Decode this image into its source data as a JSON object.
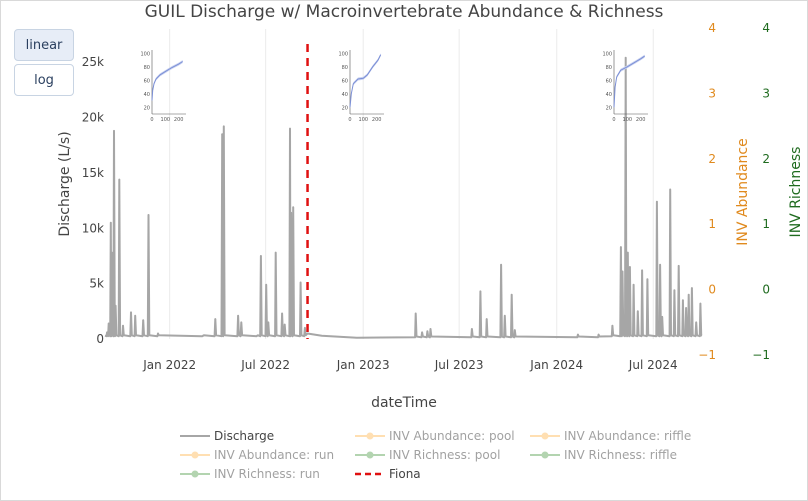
{
  "buttons": {
    "linear": "linear",
    "log": "log"
  },
  "chart_data": {
    "type": "line",
    "title": "GUIL Discharge w/ Macroinvertebrate Abundance & Richness",
    "xlabel": "dateTime",
    "ylabel": "Discharge (L/s)",
    "y2label": "INV Abundance",
    "y3label": "INV Richness",
    "x_range": [
      "2021-09-01",
      "2024-10-01"
    ],
    "ylim": [
      0,
      28000
    ],
    "y2lim": [
      -1,
      4
    ],
    "y3lim": [
      -1,
      4
    ],
    "x_ticks": [
      {
        "date": "2022-01-01",
        "label": "Jan 2022"
      },
      {
        "date": "2022-07-01",
        "label": "Jul 2022"
      },
      {
        "date": "2023-01-01",
        "label": "Jan 2023"
      },
      {
        "date": "2023-07-01",
        "label": "Jul 2023"
      },
      {
        "date": "2024-01-01",
        "label": "Jan 2024"
      },
      {
        "date": "2024-07-01",
        "label": "Jul 2024"
      }
    ],
    "y_ticks": [
      {
        "value": 0,
        "label": "0"
      },
      {
        "value": 5000,
        "label": "5k"
      },
      {
        "value": 10000,
        "label": "10k"
      },
      {
        "value": 15000,
        "label": "15k"
      },
      {
        "value": 20000,
        "label": "20k"
      },
      {
        "value": 25000,
        "label": "25k"
      }
    ],
    "y2_ticks": [
      "−1",
      "0",
      "1",
      "2",
      "3",
      "4"
    ],
    "y3_ticks": [
      "−1",
      "0",
      "1",
      "2",
      "3",
      "4"
    ],
    "colors": {
      "discharge": "#a6a6a6",
      "abundance": "#ffc067",
      "richness": "#6aaa64",
      "fiona": "#e01010",
      "y2_axis": "#e08a1e",
      "y3_axis": "#1f6b1f",
      "inset_line": "#7b8fd6"
    },
    "fiona_date": "2022-09-18",
    "discharge_baseline_note": "approx. 100-400 L/s between peaks",
    "discharge_peaks": [
      {
        "date": "2021-09-05",
        "value": 600
      },
      {
        "date": "2021-09-08",
        "value": 1400
      },
      {
        "date": "2021-09-12",
        "value": 10500
      },
      {
        "date": "2021-09-14",
        "value": 7800
      },
      {
        "date": "2021-09-18",
        "value": 18800
      },
      {
        "date": "2021-09-21",
        "value": 3000
      },
      {
        "date": "2021-09-28",
        "value": 14400
      },
      {
        "date": "2021-10-05",
        "value": 1200
      },
      {
        "date": "2021-10-20",
        "value": 2400
      },
      {
        "date": "2021-10-28",
        "value": 2100
      },
      {
        "date": "2021-11-12",
        "value": 1700
      },
      {
        "date": "2021-11-22",
        "value": 11200
      },
      {
        "date": "2021-12-10",
        "value": 500
      },
      {
        "date": "2022-03-05",
        "value": 300
      },
      {
        "date": "2022-03-28",
        "value": 1800
      },
      {
        "date": "2022-04-10",
        "value": 18500
      },
      {
        "date": "2022-04-13",
        "value": 19200
      },
      {
        "date": "2022-05-10",
        "value": 2100
      },
      {
        "date": "2022-05-16",
        "value": 1500
      },
      {
        "date": "2022-06-15",
        "value": 300
      },
      {
        "date": "2022-06-22",
        "value": 7500
      },
      {
        "date": "2022-07-02",
        "value": 4900
      },
      {
        "date": "2022-07-06",
        "value": 1500
      },
      {
        "date": "2022-07-20",
        "value": 7800
      },
      {
        "date": "2022-08-01",
        "value": 2300
      },
      {
        "date": "2022-08-06",
        "value": 1300
      },
      {
        "date": "2022-08-16",
        "value": 19000
      },
      {
        "date": "2022-08-18",
        "value": 11400
      },
      {
        "date": "2022-08-22",
        "value": 11900
      },
      {
        "date": "2022-09-05",
        "value": 5100
      },
      {
        "date": "2022-09-13",
        "value": 1000
      },
      {
        "date": "2023-04-10",
        "value": 2300
      },
      {
        "date": "2023-04-22",
        "value": 600
      },
      {
        "date": "2023-05-02",
        "value": 700
      },
      {
        "date": "2023-05-08",
        "value": 900
      },
      {
        "date": "2023-07-25",
        "value": 900
      },
      {
        "date": "2023-08-10",
        "value": 4300
      },
      {
        "date": "2023-08-22",
        "value": 1800
      },
      {
        "date": "2023-09-18",
        "value": 6700
      },
      {
        "date": "2023-09-25",
        "value": 2100
      },
      {
        "date": "2023-10-08",
        "value": 4000
      },
      {
        "date": "2023-10-14",
        "value": 800
      },
      {
        "date": "2024-02-10",
        "value": 400
      },
      {
        "date": "2024-03-20",
        "value": 400
      },
      {
        "date": "2024-04-15",
        "value": 1200
      },
      {
        "date": "2024-05-01",
        "value": 8300
      },
      {
        "date": "2024-05-04",
        "value": 6100
      },
      {
        "date": "2024-05-10",
        "value": 25400
      },
      {
        "date": "2024-05-14",
        "value": 7800
      },
      {
        "date": "2024-05-18",
        "value": 6500
      },
      {
        "date": "2024-05-25",
        "value": 4900
      },
      {
        "date": "2024-06-02",
        "value": 2500
      },
      {
        "date": "2024-06-10",
        "value": 6200
      },
      {
        "date": "2024-06-20",
        "value": 5400
      },
      {
        "date": "2024-07-08",
        "value": 12400
      },
      {
        "date": "2024-07-14",
        "value": 6700
      },
      {
        "date": "2024-07-18",
        "value": 2000
      },
      {
        "date": "2024-08-02",
        "value": 13500
      },
      {
        "date": "2024-08-10",
        "value": 4400
      },
      {
        "date": "2024-08-18",
        "value": 6600
      },
      {
        "date": "2024-08-26",
        "value": 3500
      },
      {
        "date": "2024-09-01",
        "value": 2800
      },
      {
        "date": "2024-09-06",
        "value": 4000
      },
      {
        "date": "2024-09-12",
        "value": 4600
      },
      {
        "date": "2024-09-20",
        "value": 1500
      },
      {
        "date": "2024-09-28",
        "value": 3200
      }
    ],
    "insets": [
      {
        "x_tick_labels": [
          "0",
          "100",
          "200"
        ],
        "y_tick_labels": [
          "20",
          "40",
          "60",
          "80",
          "100"
        ],
        "curve": [
          [
            0,
            30
          ],
          [
            5,
            45
          ],
          [
            15,
            55
          ],
          [
            30,
            62
          ],
          [
            60,
            68
          ],
          [
            100,
            73
          ],
          [
            150,
            79
          ],
          [
            200,
            84
          ],
          [
            230,
            88
          ]
        ]
      },
      {
        "x_tick_labels": [
          "0",
          "100",
          "200"
        ],
        "y_tick_labels": [
          "20",
          "40",
          "60",
          "80",
          "100"
        ],
        "curve": [
          [
            0,
            20
          ],
          [
            10,
            40
          ],
          [
            25,
            55
          ],
          [
            60,
            62
          ],
          [
            100,
            63
          ],
          [
            130,
            68
          ],
          [
            170,
            80
          ],
          [
            210,
            90
          ],
          [
            230,
            98
          ]
        ]
      },
      {
        "x_tick_labels": [
          "0",
          "100",
          "200"
        ],
        "y_tick_labels": [
          "20",
          "40",
          "60",
          "80",
          "100"
        ],
        "curve": [
          [
            0,
            20
          ],
          [
            8,
            50
          ],
          [
            20,
            65
          ],
          [
            50,
            75
          ],
          [
            100,
            80
          ],
          [
            150,
            86
          ],
          [
            200,
            92
          ],
          [
            230,
            96
          ]
        ]
      }
    ],
    "legend": {
      "placement": "bottom",
      "entries": [
        {
          "name": "Discharge",
          "kind": "line",
          "color_key": "discharge",
          "active": true
        },
        {
          "name": "INV Abundance: pool",
          "kind": "marker-line",
          "color_key": "abundance",
          "active": false
        },
        {
          "name": "INV Abundance: riffle",
          "kind": "marker-line",
          "color_key": "abundance",
          "active": false
        },
        {
          "name": "INV Abundance: run",
          "kind": "marker-line",
          "color_key": "abundance",
          "active": false
        },
        {
          "name": "INV Richness: pool",
          "kind": "marker-line",
          "color_key": "richness",
          "active": false
        },
        {
          "name": "INV Richness: riffle",
          "kind": "marker-line",
          "color_key": "richness",
          "active": false
        },
        {
          "name": "INV Richness: run",
          "kind": "marker-line",
          "color_key": "richness",
          "active": false
        },
        {
          "name": "Fiona",
          "kind": "dash",
          "color_key": "fiona",
          "active": true
        }
      ]
    }
  }
}
